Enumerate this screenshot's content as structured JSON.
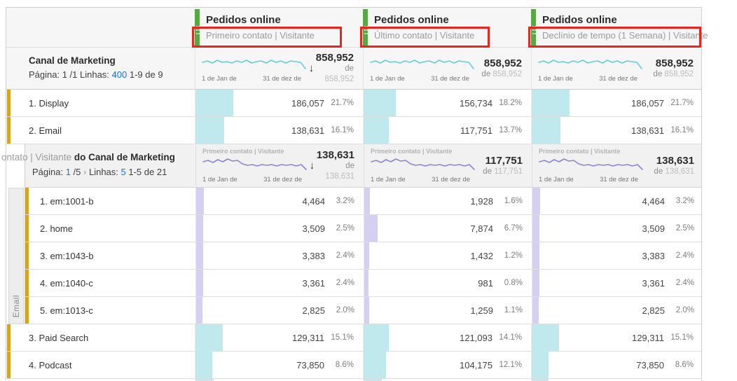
{
  "colors": {
    "accent_green": "#56a944",
    "bar_teal": "#bfe9ed",
    "bar_lavender": "#d5d0f0",
    "spark_teal": "#66ccd6",
    "spark_purple": "#8b85d8",
    "highlight_red": "#e8251f",
    "accent_gold": "#d5a422",
    "link_blue": "#1473e6"
  },
  "dates": {
    "start": "1 de Jan de",
    "end": "31 de dez de"
  },
  "sort_arrow": "↓",
  "metrics_header": [
    {
      "title": "Pedidos online",
      "model": "Primeiro contato | Visitante",
      "total": "858,952",
      "of_prefix": "de",
      "of_value": "858,952",
      "sorted": true
    },
    {
      "title": "Pedidos online",
      "model": "Último contato | Visitante",
      "total": "858,952",
      "of_prefix": "de",
      "of_value": "858,952",
      "sorted": false
    },
    {
      "title": "Pedidos online",
      "model": "Declínio de tempo (1 Semana) | Visitante",
      "total": "858,952",
      "of_prefix": "de",
      "of_value": "858,952",
      "sorted": false
    }
  ],
  "dimension_header": {
    "title": "Canal de Marketing",
    "pagination": [
      {
        "t": "Página: 1 /1 Linhas: ",
        "c": "dark"
      },
      {
        "t": "400",
        "c": "blue"
      },
      {
        "t": " 1-9 de 9",
        "c": "dark"
      }
    ]
  },
  "rows_top": [
    {
      "label": "1. Display",
      "cells": [
        {
          "value": "186,057",
          "pct": "21.7%",
          "bar": 21.7
        },
        {
          "value": "156,734",
          "pct": "18.2%",
          "bar": 18.2
        },
        {
          "value": "186,057",
          "pct": "21.7%",
          "bar": 21.7
        }
      ]
    },
    {
      "label": "2. Email",
      "cells": [
        {
          "value": "138,631",
          "pct": "16.1%",
          "bar": 16.1
        },
        {
          "value": "117,751",
          "pct": "13.7%",
          "bar": 13.7
        },
        {
          "value": "138,631",
          "pct": "16.1%",
          "bar": 16.1
        }
      ]
    }
  ],
  "breakdown": {
    "strip_label": "Email",
    "title_clipped": "ontato | Visitante",
    "title_bold": " do Canal de Marketing",
    "pagination": [
      {
        "t": "Página: ",
        "c": "dark"
      },
      {
        "t": "1",
        "c": "blue"
      },
      {
        "t": " /5",
        "c": "dark"
      },
      {
        "t": "  ›  ",
        "c": "gray"
      },
      {
        "t": "Linhas: ",
        "c": "dark"
      },
      {
        "t": "5",
        "c": "blue"
      },
      {
        "t": " 1-5 de 21",
        "c": "dark"
      }
    ],
    "metric_headers": [
      {
        "label": "Primeiro contato | Visitante",
        "total": "138,631",
        "of_prefix": "de",
        "of_value": "138,631",
        "sorted": true
      },
      {
        "label": "Primeiro contato | Visitante",
        "total": "117,751",
        "of_prefix": "de",
        "of_value": "117,751",
        "sorted": false
      },
      {
        "label": "Primeiro contato | Visitante",
        "total": "138,631",
        "of_prefix": "de",
        "of_value": "138,631",
        "sorted": false
      }
    ],
    "rows": [
      {
        "label": "1. em:1001-b",
        "cells": [
          {
            "value": "4,464",
            "pct": "3.2%",
            "bar": 3.2
          },
          {
            "value": "1,928",
            "pct": "1.6%",
            "bar": 1.6
          },
          {
            "value": "4,464",
            "pct": "3.2%",
            "bar": 3.2
          }
        ]
      },
      {
        "label": "2. home",
        "cells": [
          {
            "value": "3,509",
            "pct": "2.5%",
            "bar": 2.5
          },
          {
            "value": "7,874",
            "pct": "6.7%",
            "bar": 6.7
          },
          {
            "value": "3,509",
            "pct": "2.5%",
            "bar": 2.5
          }
        ]
      },
      {
        "label": "3. em:1043-b",
        "cells": [
          {
            "value": "3,383",
            "pct": "2.4%",
            "bar": 2.4
          },
          {
            "value": "1,432",
            "pct": "1.2%",
            "bar": 1.2
          },
          {
            "value": "3,383",
            "pct": "2.4%",
            "bar": 2.4
          }
        ]
      },
      {
        "label": "4. em:1040-c",
        "cells": [
          {
            "value": "3,361",
            "pct": "2.4%",
            "bar": 2.4
          },
          {
            "value": "981",
            "pct": "0.8%",
            "bar": 0.8
          },
          {
            "value": "3,361",
            "pct": "2.4%",
            "bar": 2.4
          }
        ]
      },
      {
        "label": "5. em:1013-c",
        "cells": [
          {
            "value": "2,825",
            "pct": "2.0%",
            "bar": 2.0
          },
          {
            "value": "1,259",
            "pct": "1.1%",
            "bar": 1.1
          },
          {
            "value": "2,825",
            "pct": "2.0%",
            "bar": 2.0
          }
        ]
      }
    ]
  },
  "rows_bottom": [
    {
      "label": "3. Paid Search",
      "cells": [
        {
          "value": "129,311",
          "pct": "15.1%",
          "bar": 15.1
        },
        {
          "value": "121,093",
          "pct": "14.1%",
          "bar": 14.1
        },
        {
          "value": "129,311",
          "pct": "15.1%",
          "bar": 15.1
        }
      ]
    },
    {
      "label": "4. Podcast",
      "cells": [
        {
          "value": "73,850",
          "pct": "8.6%",
          "bar": 8.6
        },
        {
          "value": "104,175",
          "pct": "12.1%",
          "bar": 12.1
        },
        {
          "value": "73,850",
          "pct": "8.6%",
          "bar": 8.6
        }
      ]
    }
  ],
  "partial_row": {
    "bars": [
      9.5,
      9.5,
      8.5
    ]
  }
}
